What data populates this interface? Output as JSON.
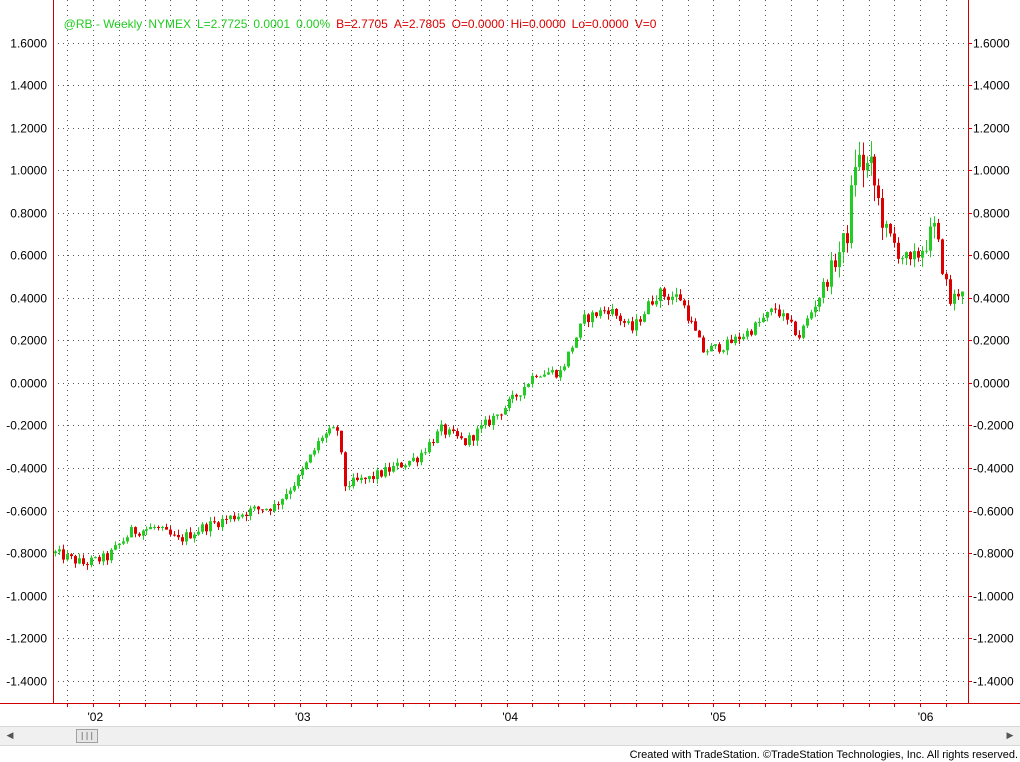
{
  "header": {
    "symbol": "@RB - Weekly",
    "exchange": "NYMEX",
    "last": "L=2.7725",
    "change": "0.0001",
    "change_pct": "0.00%",
    "bid": "B=2.7705",
    "ask": "A=2.7805",
    "open": "O=0.0000",
    "high": "Hi=0.0000",
    "low": "Lo=0.0000",
    "volume": "V=0"
  },
  "colors": {
    "up": "#22cc22",
    "down": "#dd0000",
    "axis": "#cc0000",
    "grid": "#555555"
  },
  "footer": {
    "credit": "Created with TradeStation. ©TradeStation Technologies, Inc. All rights reserved."
  },
  "scrollbar": {
    "left_icon": "left-arrow-icon",
    "right_icon": "right-arrow-icon",
    "thumb_icon": "grip-icon"
  },
  "chart_data": {
    "type": "candlestick",
    "ylim": [
      -1.5,
      1.8
    ],
    "y_ticks": [
      "1.6000",
      "1.4000",
      "1.2000",
      "1.0000",
      "0.8000",
      "0.6000",
      "0.4000",
      "0.2000",
      "0.0000",
      "-0.2000",
      "-0.4000",
      "-0.6000",
      "-0.8000",
      "-1.0000",
      "-1.2000",
      "-1.4000"
    ],
    "y_tick_values": [
      1.6,
      1.4,
      1.2,
      1.0,
      0.8,
      0.6,
      0.4,
      0.2,
      0.0,
      -0.2,
      -0.4,
      -0.6,
      -0.8,
      -1.0,
      -1.2,
      -1.4
    ],
    "x_tick_labels": [
      "'02",
      "'03",
      "'04",
      "'05",
      "'06"
    ],
    "x_tick_dates": [
      "2002-01-01",
      "2003-01-01",
      "2004-01-01",
      "2005-01-01",
      "2006-01-01"
    ],
    "grid": true,
    "x_start": "2001-10-22",
    "x_end": "2006-03-06",
    "series": [
      {
        "values": [
          {
            "date": "2001-10-22",
            "v": -0.8
          },
          {
            "date": "2001-12-10",
            "v": -0.85
          },
          {
            "date": "2002-01-21",
            "v": -0.82
          },
          {
            "date": "2002-03-04",
            "v": -0.7
          },
          {
            "date": "2002-04-15",
            "v": -0.68
          },
          {
            "date": "2002-05-27",
            "v": -0.74
          },
          {
            "date": "2002-07-08",
            "v": -0.68
          },
          {
            "date": "2002-08-19",
            "v": -0.64
          },
          {
            "date": "2002-09-30",
            "v": -0.6
          },
          {
            "date": "2002-11-11",
            "v": -0.58
          },
          {
            "date": "2002-12-23",
            "v": -0.45
          },
          {
            "date": "2003-02-03",
            "v": -0.25
          },
          {
            "date": "2003-03-03",
            "v": -0.22
          },
          {
            "date": "2003-03-17",
            "v": -0.48
          },
          {
            "date": "2003-04-28",
            "v": -0.45
          },
          {
            "date": "2003-06-09",
            "v": -0.4
          },
          {
            "date": "2003-07-21",
            "v": -0.35
          },
          {
            "date": "2003-09-01",
            "v": -0.22
          },
          {
            "date": "2003-10-13",
            "v": -0.28
          },
          {
            "date": "2003-11-24",
            "v": -0.18
          },
          {
            "date": "2004-01-05",
            "v": -0.08
          },
          {
            "date": "2004-02-16",
            "v": 0.05
          },
          {
            "date": "2004-03-29",
            "v": 0.05
          },
          {
            "date": "2004-05-10",
            "v": 0.3
          },
          {
            "date": "2004-06-21",
            "v": 0.35
          },
          {
            "date": "2004-08-02",
            "v": 0.25
          },
          {
            "date": "2004-09-13",
            "v": 0.42
          },
          {
            "date": "2004-10-25",
            "v": 0.4
          },
          {
            "date": "2004-12-06",
            "v": 0.15
          },
          {
            "date": "2005-01-17",
            "v": 0.18
          },
          {
            "date": "2005-02-28",
            "v": 0.25
          },
          {
            "date": "2005-04-11",
            "v": 0.35
          },
          {
            "date": "2005-05-23",
            "v": 0.22
          },
          {
            "date": "2005-07-04",
            "v": 0.45
          },
          {
            "date": "2005-08-15",
            "v": 0.7
          },
          {
            "date": "2005-08-29",
            "v": 1.05
          },
          {
            "date": "2005-09-26",
            "v": 1.0
          },
          {
            "date": "2005-10-24",
            "v": 0.7
          },
          {
            "date": "2005-12-05",
            "v": 0.55
          },
          {
            "date": "2006-01-16",
            "v": 0.72
          },
          {
            "date": "2006-02-13",
            "v": 0.38
          },
          {
            "date": "2006-03-06",
            "v": 0.45
          }
        ]
      }
    ]
  }
}
